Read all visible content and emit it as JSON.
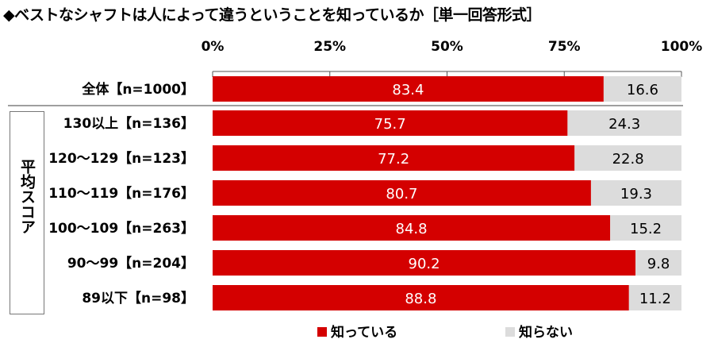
{
  "chart_data": {
    "type": "bar",
    "orientation": "horizontal",
    "stacked": true,
    "title": "◆ベストなシャフトは人によって違うということを知っているか［単一回答形式］",
    "group_label": "平均スコア",
    "categories": [
      "全体【n=1000】",
      "130以上【n=136】",
      "120～129【n=123】",
      "110～119【n=176】",
      "100～109【n=263】",
      "90～99【n=204】",
      "89以下【n=98】"
    ],
    "series": [
      {
        "name": "知っている",
        "color": "#d40000",
        "values": [
          83.4,
          75.7,
          77.2,
          80.7,
          84.8,
          90.2,
          88.8
        ]
      },
      {
        "name": "知らない",
        "color": "#dcdcdc",
        "values": [
          16.6,
          24.3,
          22.8,
          19.3,
          15.2,
          9.8,
          11.2
        ]
      }
    ],
    "xlim": [
      0,
      100
    ],
    "x_ticks": [
      "0%",
      "25%",
      "50%",
      "75%",
      "100%"
    ],
    "legend_position": "bottom"
  }
}
